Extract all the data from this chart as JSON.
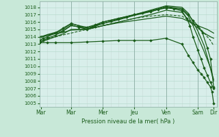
{
  "xlabel": "Pression niveau de la mer( hPa )",
  "ylim": [
    1004.5,
    1018.8
  ],
  "yticks": [
    1005,
    1006,
    1007,
    1008,
    1009,
    1010,
    1011,
    1012,
    1013,
    1014,
    1015,
    1016,
    1017,
    1018
  ],
  "background_color": "#c8e8d8",
  "plot_bg_color": "#d8eeea",
  "grid_color": "#b0d8c8",
  "vgrid_color": "#c8dcd8",
  "line_color": "#1a5c1a",
  "day_separator_color": "#88aaa0",
  "xlim": [
    0,
    5.6
  ],
  "xtick_positions": [
    0.05,
    1.0,
    2.0,
    3.0,
    4.0,
    5.0,
    5.5
  ],
  "xtick_labels": [
    "Mar",
    "Mar",
    "Mer",
    "Jeu",
    "Ven",
    "Sam",
    "Dir"
  ],
  "lines": [
    {
      "x": [
        0,
        0.12,
        0.25,
        0.5,
        0.75,
        1.0,
        1.25,
        1.5,
        1.75,
        2.0,
        2.25,
        2.5,
        2.75,
        3.0,
        3.25,
        3.5,
        3.75,
        4.0,
        4.25,
        4.5,
        4.65,
        4.75,
        4.85,
        5.0,
        5.1,
        5.2,
        5.3,
        5.4,
        5.5
      ],
      "y": [
        1013.2,
        1013.5,
        1013.8,
        1014.2,
        1014.8,
        1015.6,
        1015.3,
        1015.0,
        1015.4,
        1015.8,
        1016.1,
        1016.4,
        1016.7,
        1017.0,
        1017.2,
        1017.4,
        1017.7,
        1017.9,
        1017.8,
        1017.5,
        1016.5,
        1015.5,
        1014.0,
        1012.2,
        1011.0,
        1009.8,
        1008.8,
        1007.8,
        1007.0
      ],
      "style": "-",
      "marker": "D",
      "markersize": 1.8,
      "lw": 0.9
    },
    {
      "x": [
        0,
        0.12,
        0.25,
        0.5,
        0.75,
        1.0,
        1.25,
        1.5,
        1.75,
        2.0,
        2.5,
        3.0,
        3.5,
        4.0,
        4.5,
        4.7,
        4.85,
        5.0,
        5.15,
        5.3,
        5.4,
        5.5
      ],
      "y": [
        1013.5,
        1013.8,
        1014.0,
        1014.5,
        1015.2,
        1015.8,
        1015.5,
        1015.3,
        1015.6,
        1016.0,
        1016.5,
        1017.0,
        1017.5,
        1018.1,
        1017.8,
        1017.0,
        1016.2,
        1015.5,
        1014.5,
        1012.5,
        1011.0,
        1007.2
      ],
      "style": "-",
      "marker": "D",
      "markersize": 1.8,
      "lw": 0.9
    },
    {
      "x": [
        0,
        0.12,
        0.25,
        0.5,
        0.75,
        1.0,
        1.25,
        1.5,
        2.0,
        2.5,
        3.0,
        3.5,
        4.0,
        4.5,
        4.7,
        4.85,
        5.0,
        5.2,
        5.35,
        5.5
      ],
      "y": [
        1014.0,
        1014.1,
        1014.3,
        1014.6,
        1015.0,
        1015.8,
        1015.5,
        1015.0,
        1016.0,
        1016.5,
        1017.0,
        1017.6,
        1018.2,
        1018.0,
        1017.2,
        1016.0,
        1014.8,
        1012.8,
        1010.5,
        1008.0
      ],
      "style": "-",
      "marker": null,
      "markersize": 0,
      "lw": 0.9
    },
    {
      "x": [
        0,
        0.12,
        0.25,
        0.5,
        0.75,
        1.0,
        1.5,
        2.0,
        2.5,
        3.0,
        3.5,
        4.0,
        4.5,
        4.7,
        4.85,
        5.0,
        5.2,
        5.4,
        5.5
      ],
      "y": [
        1013.8,
        1014.0,
        1014.2,
        1014.5,
        1014.8,
        1015.5,
        1015.2,
        1015.8,
        1016.3,
        1016.9,
        1017.4,
        1018.0,
        1017.7,
        1016.8,
        1015.5,
        1014.0,
        1012.0,
        1009.8,
        1008.2
      ],
      "style": "-",
      "marker": null,
      "markersize": 0,
      "lw": 0.9
    },
    {
      "x": [
        0,
        0.12,
        0.25,
        0.5,
        0.75,
        1.0,
        1.5,
        2.0,
        2.5,
        3.0,
        3.5,
        4.0,
        4.5,
        4.75,
        5.0,
        5.2,
        5.4,
        5.5
      ],
      "y": [
        1013.2,
        1013.4,
        1013.6,
        1014.0,
        1014.4,
        1015.0,
        1015.0,
        1015.5,
        1016.0,
        1016.5,
        1017.0,
        1017.6,
        1017.3,
        1016.0,
        1015.2,
        1014.5,
        1014.0,
        1013.8
      ],
      "style": "-",
      "marker": null,
      "markersize": 0,
      "lw": 0.9
    },
    {
      "x": [
        0,
        0.12,
        0.25,
        0.5,
        0.75,
        1.0,
        1.5,
        2.0,
        2.5,
        3.0,
        3.5,
        4.0,
        4.5,
        4.75,
        5.0,
        5.3,
        5.5
      ],
      "y": [
        1014.0,
        1014.1,
        1014.2,
        1014.4,
        1014.6,
        1014.9,
        1015.0,
        1015.5,
        1015.9,
        1016.2,
        1016.5,
        1016.8,
        1016.5,
        1016.0,
        1015.5,
        1015.0,
        1014.5
      ],
      "style": "-",
      "marker": null,
      "markersize": 0,
      "lw": 0.9
    },
    {
      "x": [
        0,
        0.5,
        1.0,
        1.5,
        2.0,
        2.5,
        3.0,
        3.5,
        4.0,
        4.5,
        4.75,
        5.0,
        5.2,
        5.4,
        5.5
      ],
      "y": [
        1013.5,
        1014.0,
        1014.5,
        1015.0,
        1015.5,
        1016.0,
        1016.5,
        1016.8,
        1017.0,
        1016.8,
        1016.2,
        1015.5,
        1014.5,
        1013.5,
        1012.8
      ],
      "style": "--",
      "marker": null,
      "markersize": 0,
      "lw": 0.8
    },
    {
      "x": [
        0,
        0.25,
        0.5,
        1.0,
        1.5,
        2.0,
        2.5,
        3.0,
        3.5,
        4.0,
        4.5,
        4.7,
        4.85,
        5.0,
        5.1,
        5.2,
        5.3,
        5.4,
        5.45,
        5.5
      ],
      "y": [
        1013.2,
        1013.2,
        1013.2,
        1013.2,
        1013.3,
        1013.4,
        1013.5,
        1013.5,
        1013.5,
        1013.8,
        1013.0,
        1011.5,
        1010.5,
        1009.5,
        1009.0,
        1008.5,
        1007.8,
        1007.2,
        1006.5,
        1005.0
      ],
      "style": "-",
      "marker": "D",
      "markersize": 1.8,
      "lw": 0.9
    }
  ],
  "day_lines_x": [
    1.0,
    2.0,
    3.0,
    4.0,
    5.0
  ]
}
